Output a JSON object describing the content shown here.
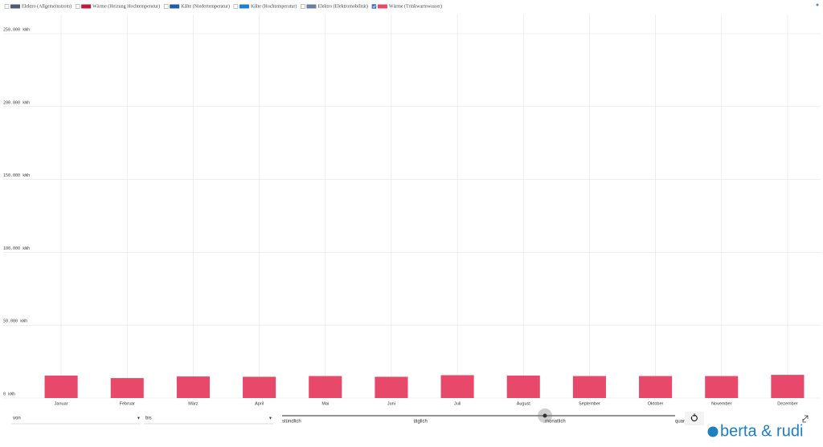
{
  "chart_data": {
    "type": "bar",
    "series": [
      {
        "name": "Elektro (Allgemeinstrom)",
        "color": "#4a5a78",
        "checked": false
      },
      {
        "name": "Wärme (Heizung Hochtemperatur)",
        "color": "#c0193a",
        "checked": false
      },
      {
        "name": "Kälte (Niedertemperatur)",
        "color": "#1a5fa8",
        "checked": false
      },
      {
        "name": "Kälte (Hochtemperatur)",
        "color": "#1f7fd0",
        "checked": false
      },
      {
        "name": "Elektro (Elektromobilität)",
        "color": "#6b7fa0",
        "checked": false
      },
      {
        "name": "Wärme (Trinkwarmwasser)",
        "color": "#e8486a",
        "checked": true,
        "values": [
          15400,
          13700,
          14800,
          14600,
          15100,
          14600,
          15700,
          15400,
          15100,
          15100,
          15100,
          15900
        ]
      }
    ],
    "categories": [
      "Januar",
      "Februar",
      "März",
      "April",
      "Mai",
      "Juni",
      "Juli",
      "August",
      "September",
      "Oktober",
      "November",
      "Dezember"
    ],
    "ylim": [
      0,
      250000
    ],
    "yticks": [
      {
        "value": 0,
        "label": "0 kWh"
      },
      {
        "value": 50000,
        "label": "50.000 kWh"
      },
      {
        "value": 100000,
        "label": "100.000 kWh"
      },
      {
        "value": 150000,
        "label": "150.000 kWh"
      },
      {
        "value": 200000,
        "label": "200.000 kWh"
      },
      {
        "value": 250000,
        "label": "250.000 kWh"
      }
    ],
    "grid": true
  },
  "controls": {
    "from_label": "von",
    "to_label": "bis",
    "granularity": [
      "stündlich",
      "täglich",
      "monatlich",
      "quar"
    ],
    "selected": 2
  },
  "logo": "berta & rudi"
}
